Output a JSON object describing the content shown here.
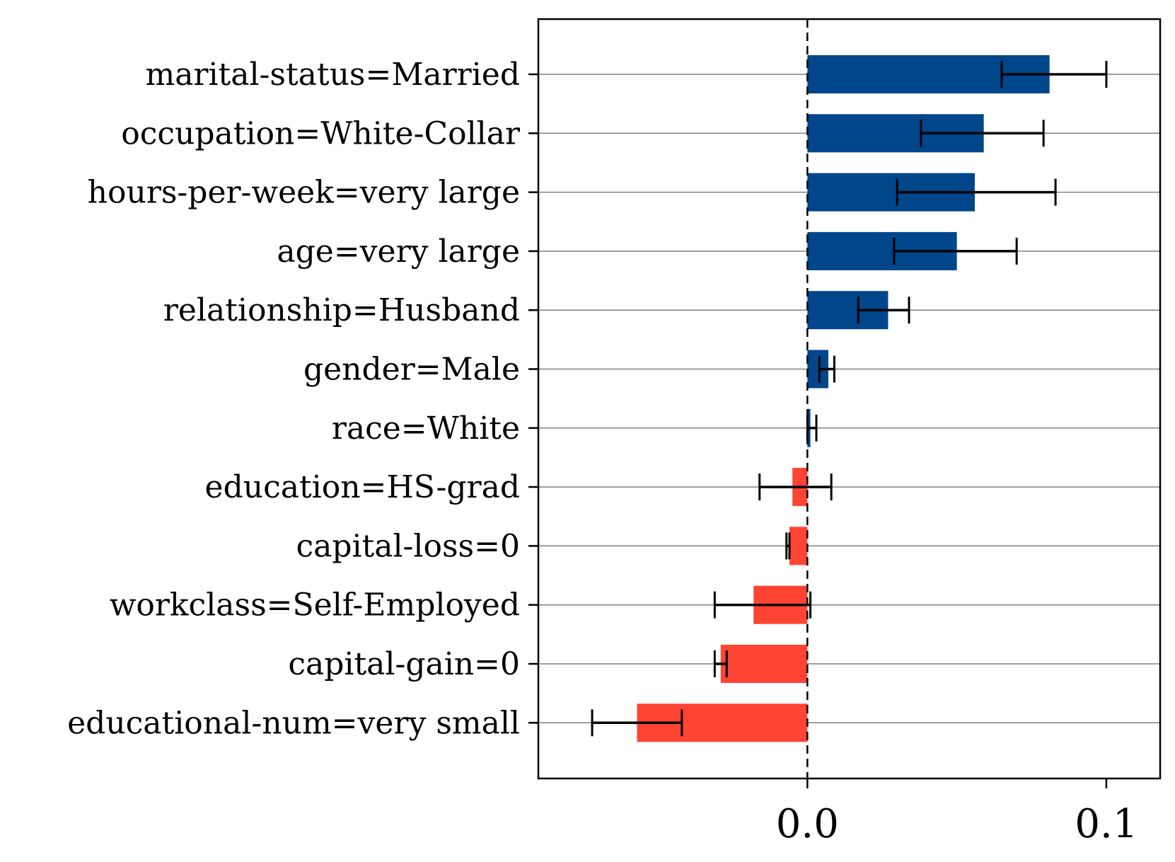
{
  "chart_data": {
    "type": "bar",
    "orientation": "horizontal",
    "title": "",
    "xlabel": "",
    "ylabel": "",
    "xlim": [
      -0.09,
      0.118
    ],
    "grid": "horizontal",
    "zero_line": "dashed",
    "colors": {
      "positive": "#00468b",
      "negative": "#ff4433",
      "error": "#000000",
      "grid": "#808080"
    },
    "xticks": [
      {
        "value": 0.0,
        "label": "0.0"
      },
      {
        "value": 0.1,
        "label": "0.1"
      }
    ],
    "bars": [
      {
        "label": "marital-status=Married",
        "value": 0.081,
        "err_low": 0.065,
        "err_high": 0.1
      },
      {
        "label": "occupation=White-Collar",
        "value": 0.059,
        "err_low": 0.038,
        "err_high": 0.079
      },
      {
        "label": "hours-per-week=very large",
        "value": 0.056,
        "err_low": 0.03,
        "err_high": 0.083
      },
      {
        "label": "age=very large",
        "value": 0.05,
        "err_low": 0.029,
        "err_high": 0.07
      },
      {
        "label": "relationship=Husband",
        "value": 0.027,
        "err_low": 0.017,
        "err_high": 0.034
      },
      {
        "label": "gender=Male",
        "value": 0.007,
        "err_low": 0.004,
        "err_high": 0.009
      },
      {
        "label": "race=White",
        "value": 0.001,
        "err_low": 0.0,
        "err_high": 0.003
      },
      {
        "label": "education=HS-grad",
        "value": -0.005,
        "err_low": -0.016,
        "err_high": 0.008
      },
      {
        "label": "capital-loss=0",
        "value": -0.006,
        "err_low": -0.007,
        "err_high": -0.006
      },
      {
        "label": "workclass=Self-Employed",
        "value": -0.018,
        "err_low": -0.031,
        "err_high": 0.001
      },
      {
        "label": "capital-gain=0",
        "value": -0.029,
        "err_low": -0.031,
        "err_high": -0.027
      },
      {
        "label": "educational-num=very small",
        "value": -0.057,
        "err_low": -0.072,
        "err_high": -0.042
      }
    ]
  }
}
